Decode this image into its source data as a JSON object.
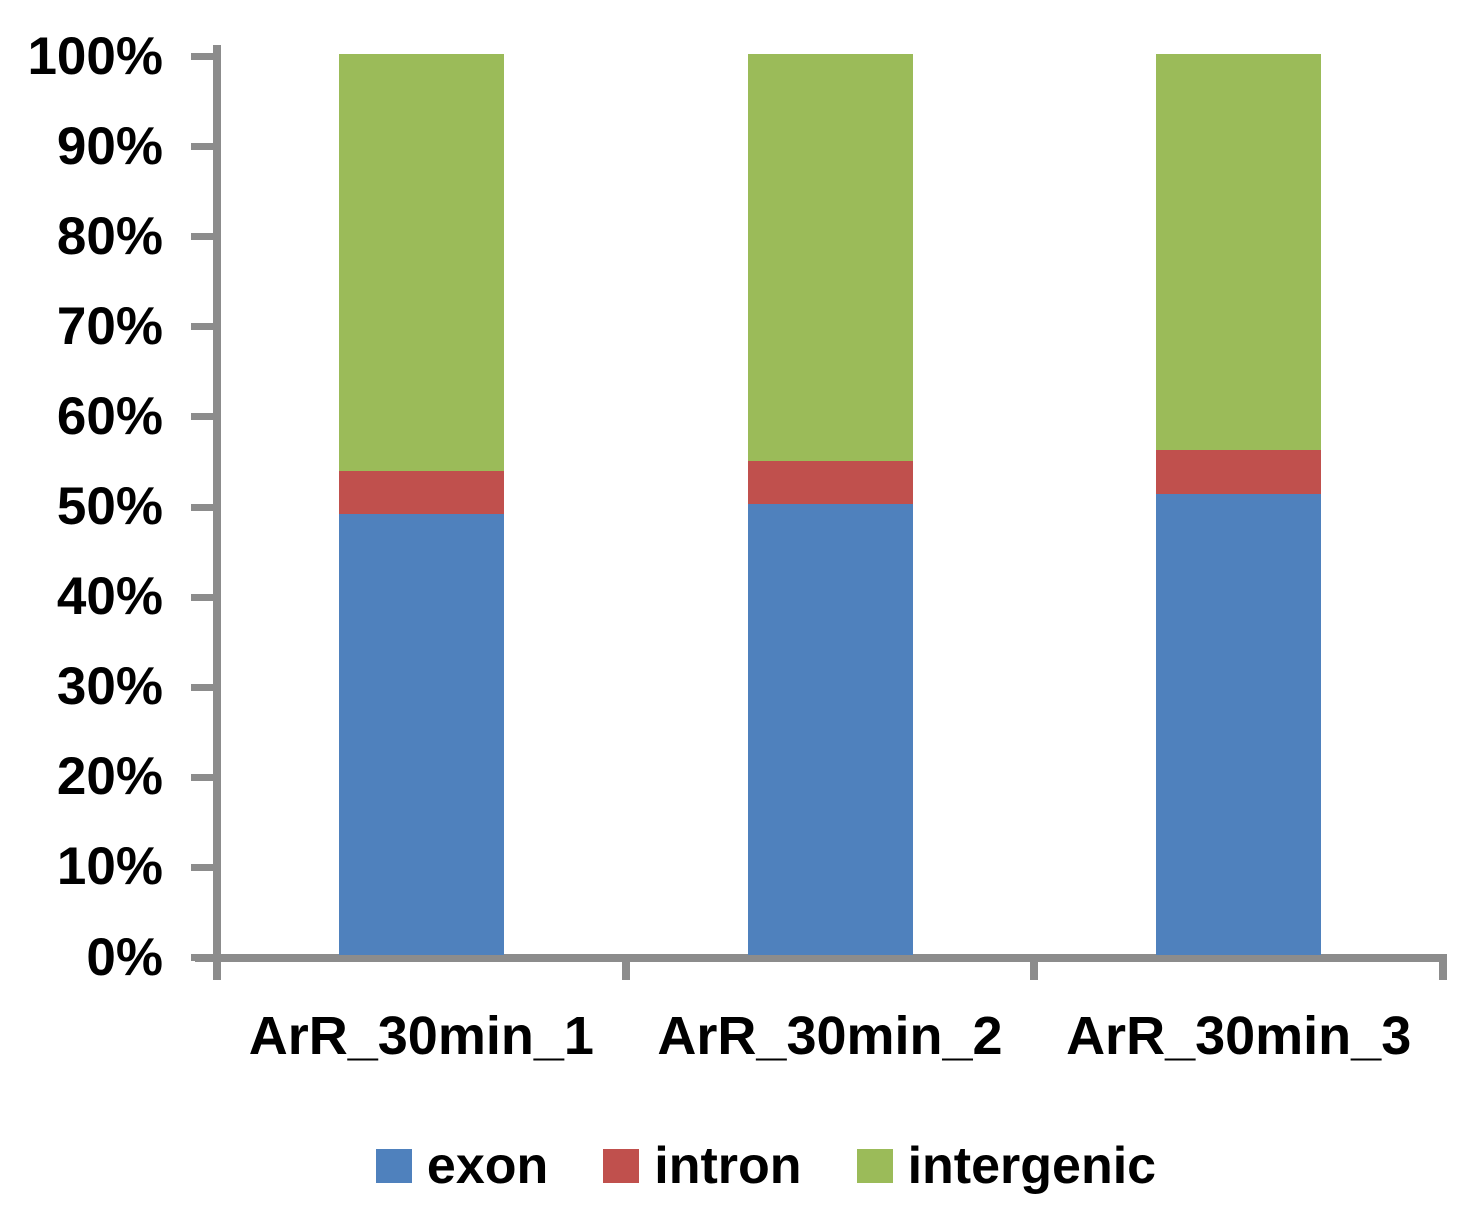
{
  "chart_data": {
    "type": "bar",
    "subtype": "stacked-100-percent",
    "title": "",
    "xlabel": "",
    "ylabel": "",
    "categories": [
      "ArR_30min_1",
      "ArR_30min_2",
      "ArR_30min_3"
    ],
    "series": [
      {
        "name": "exon",
        "color": "#4F81BD",
        "values": [
          48.9,
          50.1,
          51.2
        ]
      },
      {
        "name": "intron",
        "color": "#C0504D",
        "values": [
          4.8,
          4.7,
          4.9
        ]
      },
      {
        "name": "intergenic",
        "color": "#9BBB59",
        "values": [
          46.3,
          45.2,
          43.9
        ]
      }
    ],
    "ylim": [
      0,
      100
    ],
    "ytick_step": 10,
    "ytick_labels": [
      "0%",
      "10%",
      "20%",
      "30%",
      "40%",
      "50%",
      "60%",
      "70%",
      "80%",
      "90%",
      "100%"
    ],
    "grid": false,
    "legend_position": "bottom",
    "legend_labels": [
      "exon",
      "intron",
      "intergenic"
    ],
    "axis_color": "#8C8C8C",
    "text_color": "#000000",
    "background_color": "#FFFFFF"
  }
}
